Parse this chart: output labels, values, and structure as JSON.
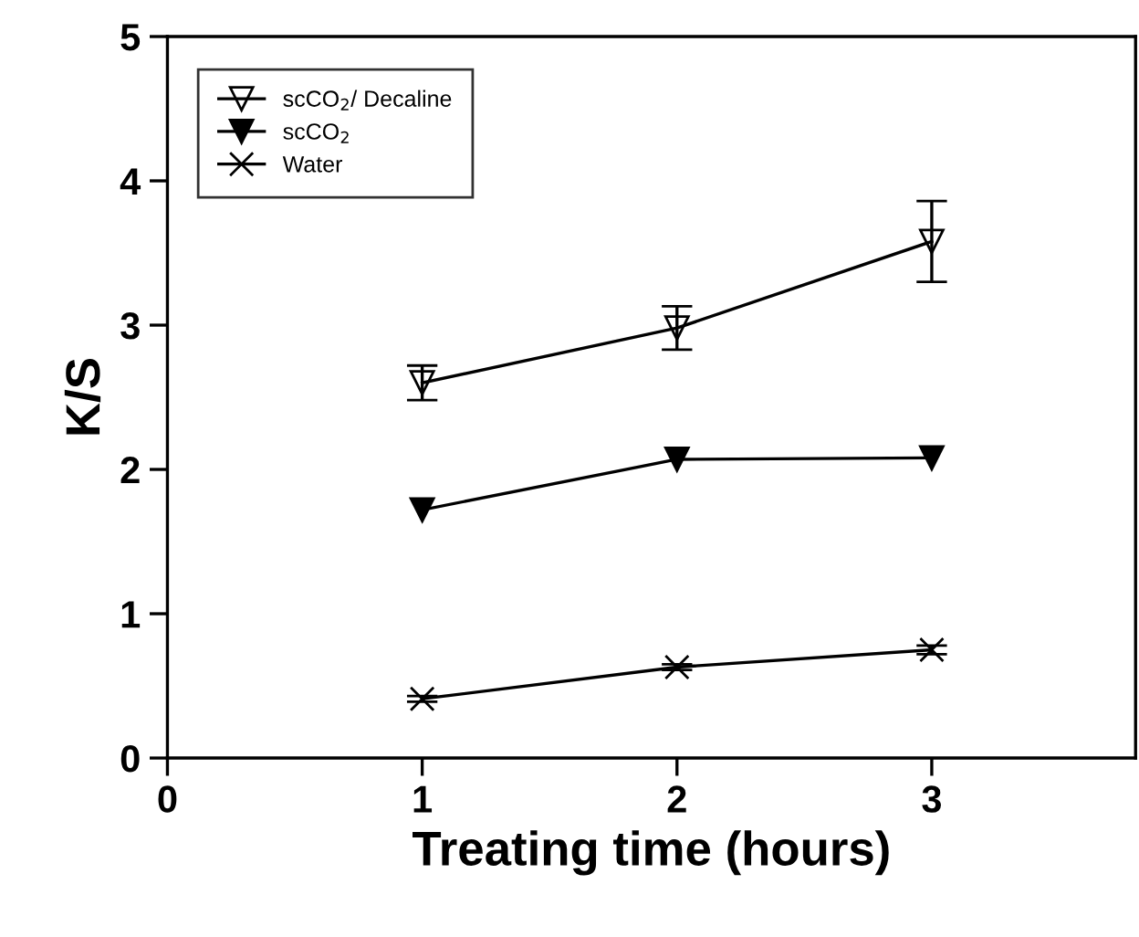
{
  "chart_data": {
    "type": "line",
    "xlabel": "Treating time (hours)",
    "ylabel": "K/S",
    "x": [
      1,
      2,
      3
    ],
    "xlim": [
      0,
      3.8
    ],
    "xticks": [
      0,
      1,
      2,
      3
    ],
    "ylim": [
      0,
      5
    ],
    "yticks": [
      0,
      1,
      2,
      3,
      4,
      5
    ],
    "legend": "top left",
    "grid": false,
    "series": [
      {
        "name": "scCO$_{2}$/ Decaline",
        "color": "#000000",
        "marker": "triangle_open",
        "values": [
          2.6,
          2.98,
          3.58
        ],
        "errors": [
          0.12,
          0.15,
          0.28
        ]
      },
      {
        "name": "scCO$_{2}$",
        "color": "#000000",
        "marker": "triangle",
        "values": [
          1.72,
          2.07,
          2.08
        ]
      },
      {
        "name": "Water",
        "color": "#000000",
        "marker": "cross",
        "values": [
          0.41,
          0.63,
          0.75
        ],
        "errors": [
          0.02,
          0.02,
          0.03
        ]
      }
    ]
  }
}
